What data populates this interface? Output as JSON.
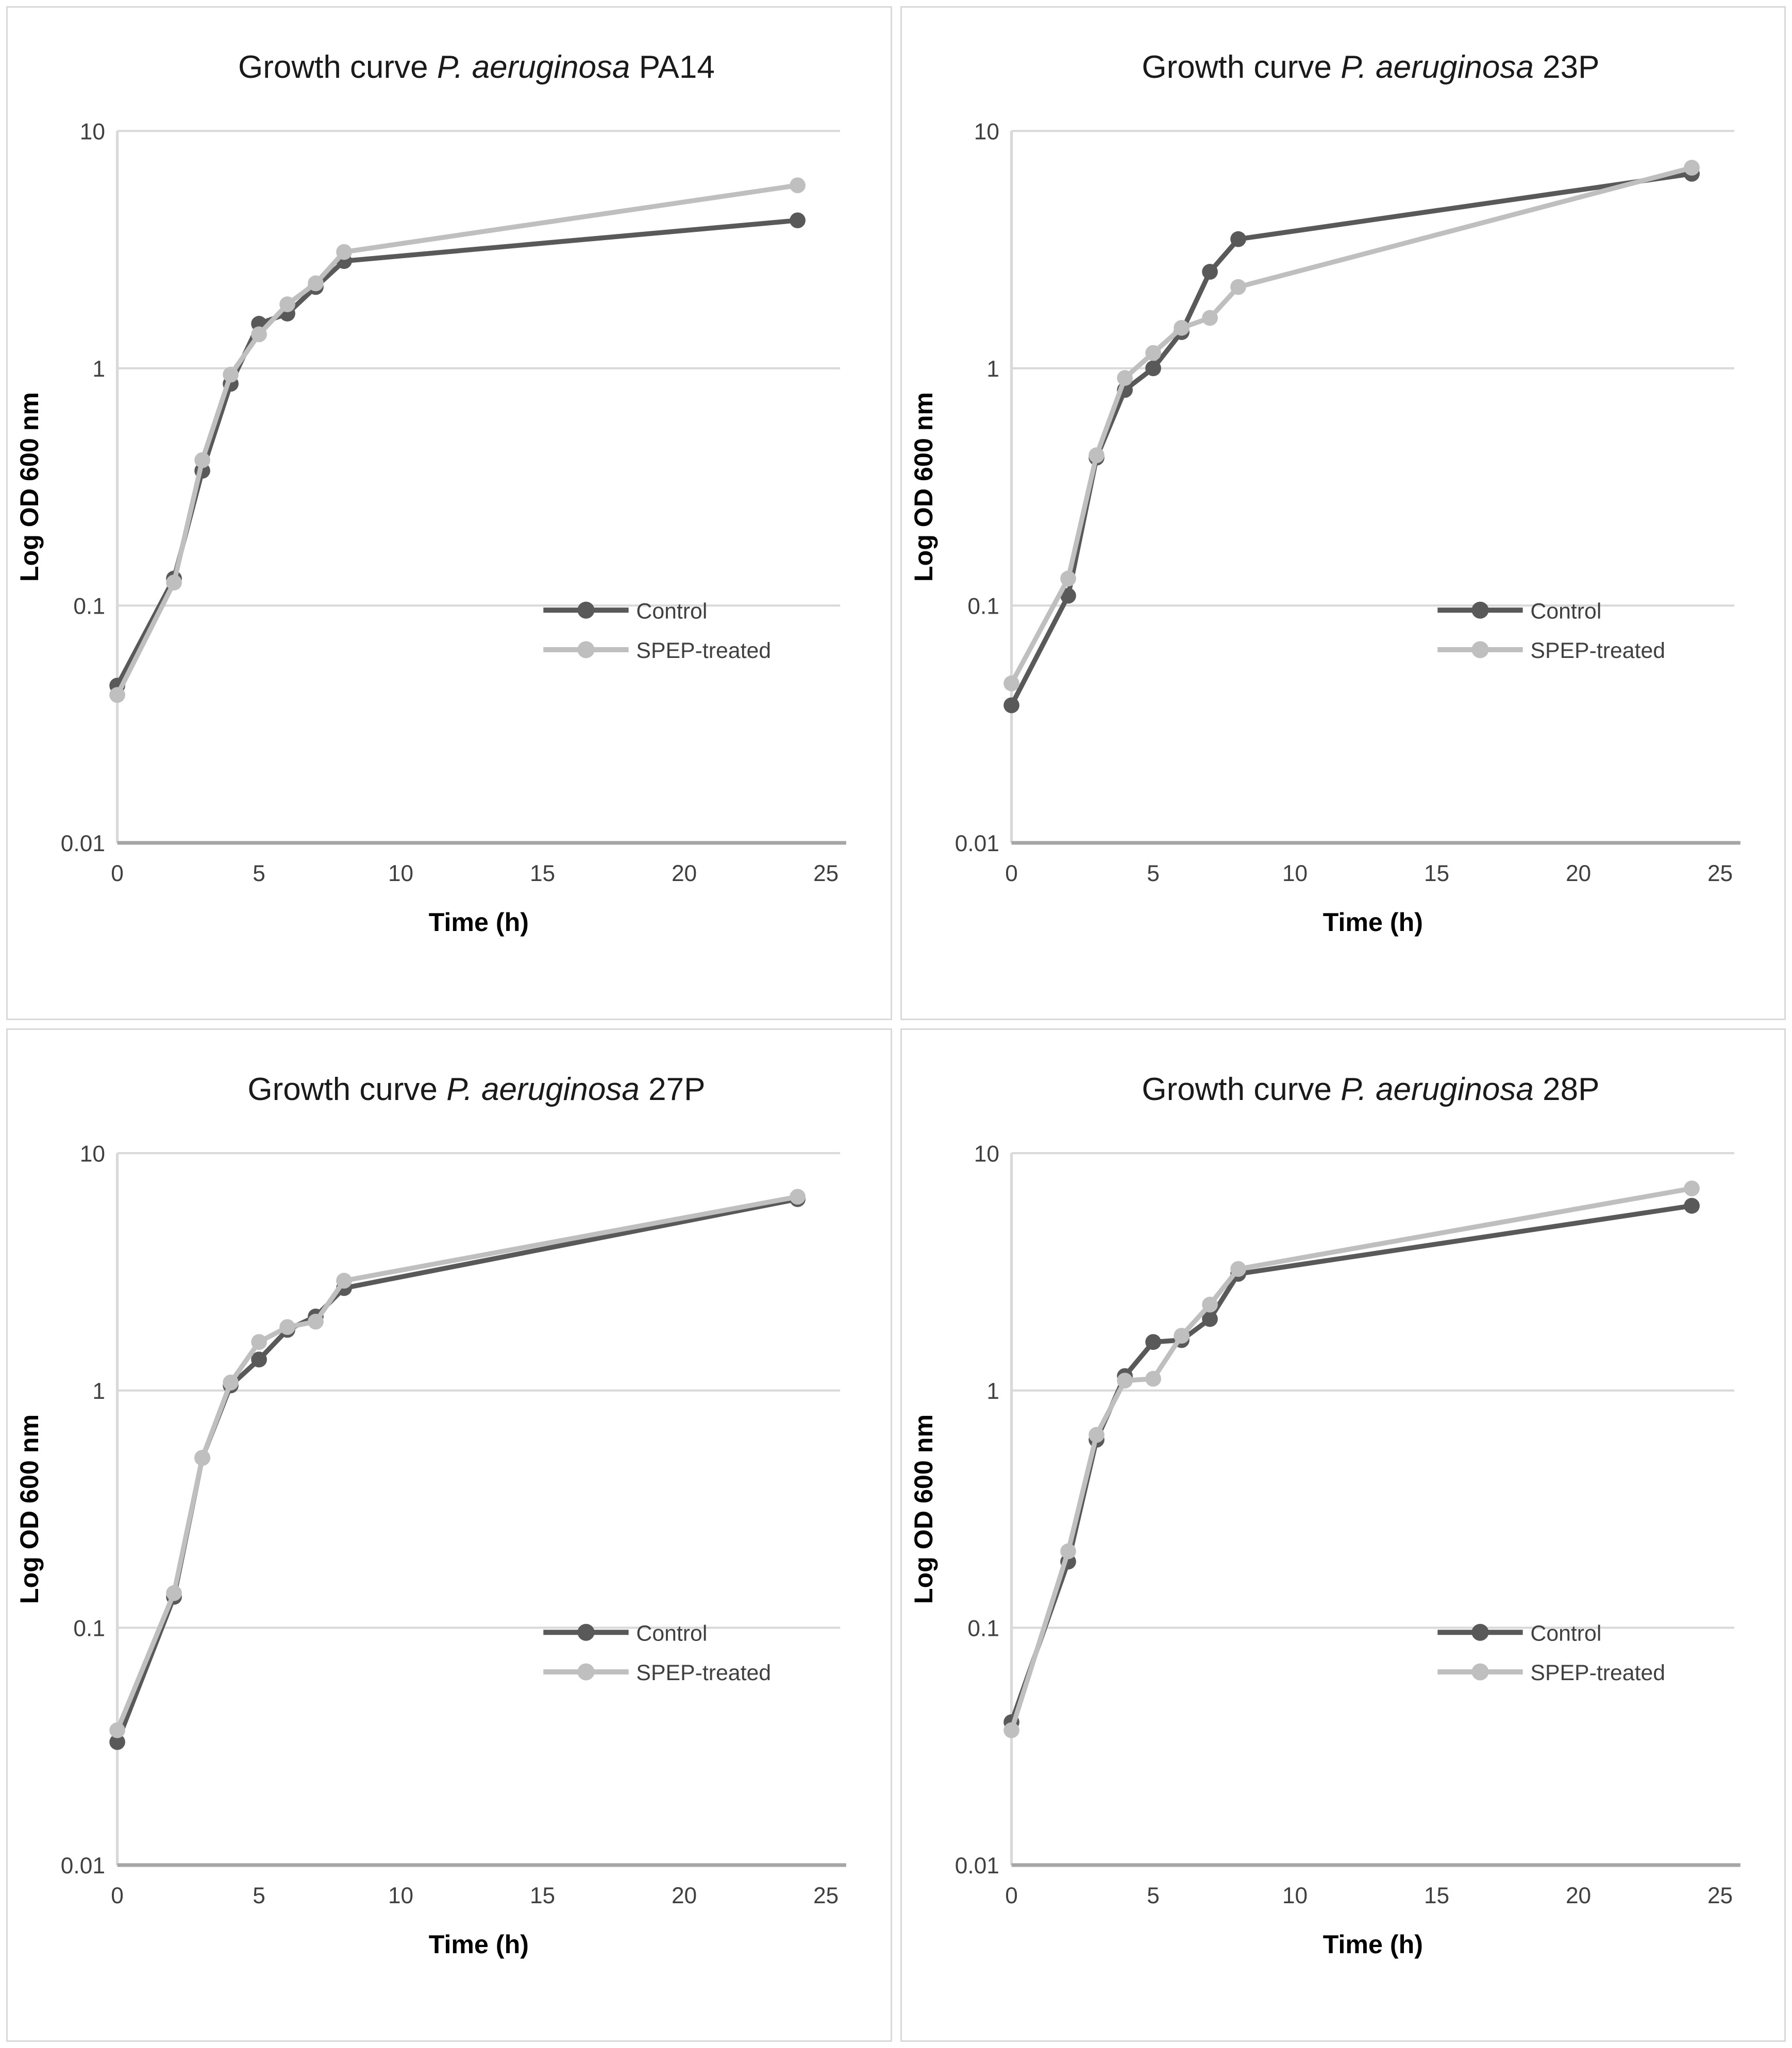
{
  "figure": {
    "background": "#ffffff",
    "panel_border_color": "#d9d9d9"
  },
  "colors": {
    "control_series": "#595959",
    "spep_series": "#bfbfbf",
    "gridline": "#d9d9d9",
    "axis_line": "#a6a6a6",
    "tick_text": "#404040",
    "title_text": "#1a1a1a"
  },
  "chart_data": [
    {
      "type": "line",
      "title": "Growth curve P. aeruginosa PA14",
      "title_parts": {
        "prefix": "Growth curve ",
        "species_italic": "P. aeruginosa",
        "strain": " PA14"
      },
      "xlabel": "Time (h)",
      "ylabel": "Log OD 600 nm",
      "y_scale": "log",
      "ylim": [
        0.01,
        10
      ],
      "xlim": [
        0,
        25.5
      ],
      "x_ticks": [
        0,
        5,
        10,
        15,
        20,
        25
      ],
      "y_ticks": [
        "10",
        "1",
        "0.1",
        "0.01"
      ],
      "grid": "horizontal",
      "legend_position": "inside-right-lower",
      "x": [
        0,
        2,
        3,
        4,
        5,
        6,
        7,
        8,
        24
      ],
      "series": [
        {
          "name": "Control",
          "color": "#595959",
          "values": [
            0.046,
            0.13,
            0.37,
            0.86,
            1.54,
            1.7,
            2.2,
            2.83,
            4.2
          ]
        },
        {
          "name": "SPEP-treated",
          "color": "#bfbfbf",
          "values": [
            0.042,
            0.125,
            0.41,
            0.94,
            1.39,
            1.86,
            2.28,
            3.09,
            5.9
          ]
        }
      ]
    },
    {
      "type": "line",
      "title": "Growth curve P. aeruginosa 23P",
      "title_parts": {
        "prefix": "Growth curve ",
        "species_italic": "P. aeruginosa",
        "strain": " 23P"
      },
      "xlabel": "Time (h)",
      "ylabel": "Log OD 600 nm",
      "y_scale": "log",
      "ylim": [
        0.01,
        10
      ],
      "xlim": [
        0,
        25.5
      ],
      "x_ticks": [
        0,
        5,
        10,
        15,
        20,
        25
      ],
      "y_ticks": [
        "10",
        "1",
        "0.1",
        "0.01"
      ],
      "grid": "horizontal",
      "legend_position": "inside-right-lower",
      "x": [
        0,
        2,
        3,
        4,
        5,
        6,
        7,
        8,
        24
      ],
      "series": [
        {
          "name": "Control",
          "color": "#595959",
          "values": [
            0.038,
            0.11,
            0.42,
            0.81,
            1.0,
            1.42,
            2.55,
            3.5,
            6.6
          ]
        },
        {
          "name": "SPEP-treated",
          "color": "#bfbfbf",
          "values": [
            0.047,
            0.13,
            0.43,
            0.91,
            1.16,
            1.48,
            1.63,
            2.2,
            7.0
          ]
        }
      ]
    },
    {
      "type": "line",
      "title": "Growth curve P. aeruginosa 27P",
      "title_parts": {
        "prefix": "Growth curve ",
        "species_italic": "P. aeruginosa",
        "strain": " 27P"
      },
      "xlabel": "Time (h)",
      "ylabel": "Log OD 600 nm",
      "y_scale": "log",
      "ylim": [
        0.01,
        10
      ],
      "xlim": [
        0,
        25.5
      ],
      "x_ticks": [
        0,
        5,
        10,
        15,
        20,
        25
      ],
      "y_ticks": [
        "10",
        "1",
        "0.1",
        "0.01"
      ],
      "grid": "horizontal",
      "legend_position": "inside-right-lower",
      "x": [
        0,
        2,
        3,
        4,
        5,
        6,
        7,
        8,
        24
      ],
      "series": [
        {
          "name": "Control",
          "color": "#595959",
          "values": [
            0.033,
            0.135,
            0.52,
            1.05,
            1.35,
            1.8,
            2.05,
            2.7,
            6.4
          ]
        },
        {
          "name": "SPEP-treated",
          "color": "#bfbfbf",
          "values": [
            0.037,
            0.14,
            0.52,
            1.08,
            1.6,
            1.85,
            1.95,
            2.9,
            6.55
          ]
        }
      ]
    },
    {
      "type": "line",
      "title": "Growth curve P. aeruginosa 28P",
      "title_parts": {
        "prefix": "Growth curve ",
        "species_italic": "P. aeruginosa",
        "strain": " 28P"
      },
      "xlabel": "Time (h)",
      "ylabel": "Log OD 600 nm",
      "y_scale": "log",
      "ylim": [
        0.01,
        10
      ],
      "xlim": [
        0,
        25.5
      ],
      "x_ticks": [
        0,
        5,
        10,
        15,
        20,
        25
      ],
      "y_ticks": [
        "10",
        "1",
        "0.1",
        "0.01"
      ],
      "grid": "horizontal",
      "legend_position": "inside-right-lower",
      "x": [
        0,
        2,
        3,
        4,
        5,
        6,
        7,
        8,
        24
      ],
      "series": [
        {
          "name": "Control",
          "color": "#595959",
          "values": [
            0.04,
            0.19,
            0.62,
            1.15,
            1.6,
            1.63,
            2.0,
            3.1,
            6.0
          ]
        },
        {
          "name": "SPEP-treated",
          "color": "#bfbfbf",
          "values": [
            0.037,
            0.21,
            0.65,
            1.1,
            1.12,
            1.7,
            2.3,
            3.25,
            7.1
          ]
        }
      ]
    }
  ]
}
